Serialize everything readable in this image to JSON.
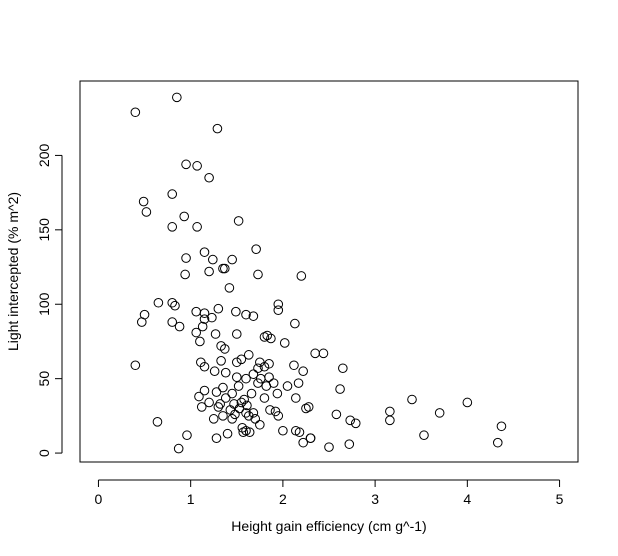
{
  "chart_data": {
    "type": "scatter",
    "title": "",
    "xlabel": "Height gain efficiency (cm g^-1)",
    "ylabel": "Light intercepted (% m^2)",
    "xlim": [
      -0.2,
      5.2
    ],
    "ylim": [
      -6,
      250
    ],
    "x_ticks": [
      0,
      1,
      2,
      3,
      4,
      5
    ],
    "y_ticks": [
      0,
      50,
      100,
      150,
      200
    ],
    "x_tick_labels": [
      "0",
      "1",
      "2",
      "3",
      "4",
      "5"
    ],
    "y_tick_labels": [
      "0",
      "50",
      "100",
      "150",
      "200"
    ],
    "grid": false,
    "legend": "none",
    "marker": "open-circle",
    "marker_color": "#000000",
    "series": [
      {
        "points": [
          [
            0.4,
            229
          ],
          [
            0.85,
            239
          ],
          [
            1.29,
            218
          ],
          [
            0.95,
            194
          ],
          [
            1.07,
            193
          ],
          [
            1.2,
            185
          ],
          [
            0.8,
            174
          ],
          [
            0.49,
            169
          ],
          [
            0.52,
            162
          ],
          [
            0.93,
            159
          ],
          [
            1.52,
            156
          ],
          [
            0.8,
            152
          ],
          [
            1.07,
            152
          ],
          [
            1.71,
            137
          ],
          [
            1.15,
            135
          ],
          [
            1.24,
            130
          ],
          [
            0.95,
            131
          ],
          [
            1.45,
            130
          ],
          [
            1.35,
            124
          ],
          [
            1.37,
            124
          ],
          [
            1.2,
            122
          ],
          [
            0.94,
            120
          ],
          [
            1.73,
            120
          ],
          [
            2.2,
            119
          ],
          [
            1.42,
            111
          ],
          [
            1.95,
            100
          ],
          [
            0.65,
            101
          ],
          [
            0.8,
            101
          ],
          [
            0.83,
            99
          ],
          [
            1.3,
            97
          ],
          [
            1.95,
            96
          ],
          [
            1.06,
            95
          ],
          [
            1.49,
            95
          ],
          [
            1.15,
            94
          ],
          [
            0.5,
            93
          ],
          [
            1.6,
            93
          ],
          [
            1.68,
            92
          ],
          [
            1.15,
            90
          ],
          [
            1.23,
            91
          ],
          [
            0.47,
            88
          ],
          [
            0.8,
            88
          ],
          [
            0.88,
            85
          ],
          [
            1.13,
            85
          ],
          [
            2.13,
            87
          ],
          [
            1.06,
            81
          ],
          [
            1.27,
            80
          ],
          [
            1.5,
            80
          ],
          [
            1.8,
            78
          ],
          [
            1.83,
            79
          ],
          [
            1.87,
            77
          ],
          [
            1.1,
            75
          ],
          [
            1.33,
            72
          ],
          [
            2.02,
            74
          ],
          [
            1.37,
            70
          ],
          [
            2.35,
            67
          ],
          [
            2.44,
            67
          ],
          [
            1.63,
            66
          ],
          [
            1.55,
            63
          ],
          [
            1.33,
            62
          ],
          [
            1.11,
            61
          ],
          [
            1.5,
            61
          ],
          [
            1.75,
            61
          ],
          [
            1.15,
            58
          ],
          [
            2.12,
            59
          ],
          [
            0.4,
            59
          ],
          [
            1.8,
            58
          ],
          [
            1.85,
            60
          ],
          [
            1.73,
            57
          ],
          [
            2.65,
            57
          ],
          [
            1.26,
            55
          ],
          [
            2.22,
            55
          ],
          [
            1.38,
            54
          ],
          [
            1.68,
            53
          ],
          [
            1.5,
            51
          ],
          [
            1.6,
            50
          ],
          [
            1.76,
            50
          ],
          [
            1.85,
            51
          ],
          [
            1.9,
            47
          ],
          [
            1.73,
            47
          ],
          [
            2.17,
            47
          ],
          [
            1.52,
            45
          ],
          [
            1.82,
            45
          ],
          [
            2.05,
            45
          ],
          [
            1.35,
            44
          ],
          [
            1.15,
            42
          ],
          [
            1.28,
            41
          ],
          [
            2.62,
            43
          ],
          [
            1.45,
            40
          ],
          [
            1.66,
            40
          ],
          [
            1.94,
            40
          ],
          [
            1.09,
            38
          ],
          [
            1.38,
            37
          ],
          [
            1.8,
            37
          ],
          [
            2.14,
            37
          ],
          [
            1.58,
            36
          ],
          [
            1.55,
            34
          ],
          [
            1.2,
            34
          ],
          [
            1.32,
            33
          ],
          [
            1.47,
            33
          ],
          [
            1.61,
            32
          ],
          [
            1.12,
            31
          ],
          [
            1.3,
            31
          ],
          [
            1.53,
            30
          ],
          [
            1.43,
            29
          ],
          [
            1.86,
            29
          ],
          [
            1.92,
            28
          ],
          [
            1.6,
            27
          ],
          [
            1.68,
            27
          ],
          [
            1.48,
            26
          ],
          [
            1.35,
            25
          ],
          [
            1.63,
            25
          ],
          [
            1.95,
            25
          ],
          [
            1.25,
            23
          ],
          [
            1.45,
            23
          ],
          [
            1.7,
            23
          ],
          [
            2.28,
            31
          ],
          [
            2.25,
            30
          ],
          [
            2.58,
            26
          ],
          [
            2.73,
            22
          ],
          [
            3.16,
            28
          ],
          [
            3.16,
            22
          ],
          [
            2.79,
            20
          ],
          [
            1.75,
            19
          ],
          [
            1.56,
            17
          ],
          [
            1.6,
            15
          ],
          [
            1.64,
            14
          ],
          [
            1.4,
            13
          ],
          [
            2.14,
            15
          ],
          [
            2.18,
            14
          ],
          [
            2.3,
            10
          ],
          [
            2.3,
            10
          ],
          [
            1.28,
            10
          ],
          [
            0.96,
            12
          ],
          [
            2.0,
            15
          ],
          [
            1.57,
            14
          ],
          [
            2.22,
            7
          ],
          [
            2.72,
            6
          ],
          [
            2.5,
            4
          ],
          [
            0.87,
            3
          ],
          [
            0.64,
            21
          ],
          [
            3.4,
            36
          ],
          [
            3.7,
            27
          ],
          [
            3.53,
            12
          ],
          [
            4.0,
            34
          ],
          [
            4.37,
            18
          ],
          [
            4.33,
            7
          ]
        ]
      }
    ]
  }
}
